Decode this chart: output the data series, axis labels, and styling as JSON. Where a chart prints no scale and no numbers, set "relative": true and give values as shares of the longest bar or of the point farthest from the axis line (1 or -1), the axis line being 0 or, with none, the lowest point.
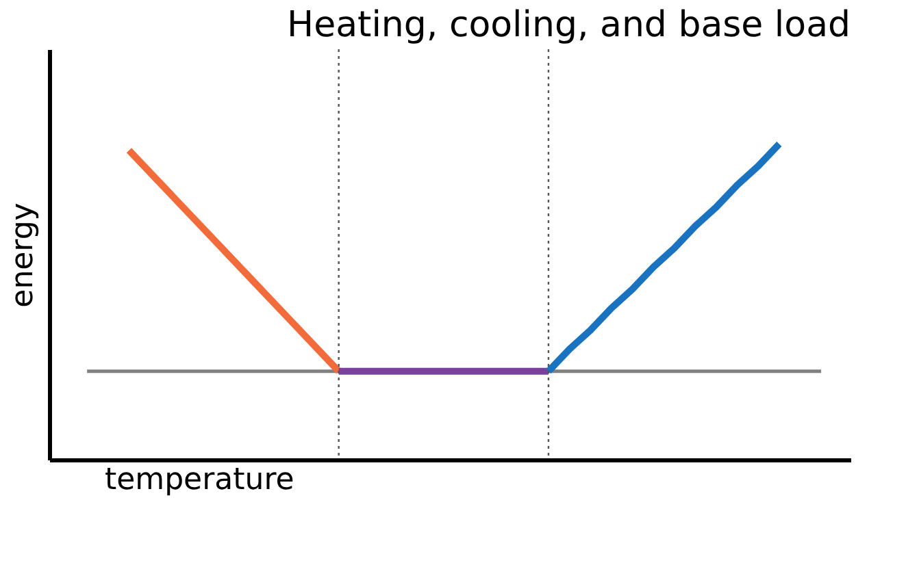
{
  "chart_data": {
    "type": "line",
    "title": "Heating, cooling, and base load",
    "xlabel": "temperature",
    "ylabel": "energy",
    "relative": true,
    "grid": false,
    "marker": "none",
    "line_style": "solid",
    "categories": [
      null,
      null,
      null,
      null,
      null,
      null,
      null,
      null,
      null,
      null,
      null,
      null,
      null,
      null,
      null,
      null,
      null,
      null,
      null,
      null,
      null,
      null,
      null,
      null,
      null,
      null,
      null,
      null,
      null,
      null,
      null,
      null,
      null,
      null,
      null,
      null
    ],
    "series": [
      {
        "color": "#808080",
        "values": [
          0.28,
          0.28,
          0.28,
          0.28,
          0.28,
          0.28,
          0.28,
          0.28,
          0.28,
          0.28,
          0.28,
          0.28,
          0.28,
          0.28,
          0.28,
          0.28,
          0.28,
          0.28,
          0.28,
          0.28,
          0.28,
          0.28,
          0.28,
          0.28,
          0.28,
          0.28,
          0.28,
          0.28,
          0.28,
          0.28,
          0.28,
          0.28,
          0.28,
          0.28,
          0.28,
          0.28
        ]
      },
      {
        "color": "#f26b3a",
        "values": [
          null,
          null,
          0.98,
          0.91,
          0.84,
          0.77,
          0.7,
          0.63,
          0.56,
          0.49,
          0.42,
          0.35,
          0.28,
          null,
          null,
          null,
          null,
          null,
          null,
          null,
          null,
          null,
          null,
          null,
          null,
          null,
          null,
          null,
          null,
          null,
          null,
          null,
          null,
          null,
          null,
          null
        ]
      },
      {
        "color": "#7b3f9e",
        "values": [
          null,
          null,
          null,
          null,
          null,
          null,
          null,
          null,
          null,
          null,
          null,
          null,
          0.28,
          0.28,
          0.28,
          0.28,
          0.28,
          0.28,
          0.28,
          0.28,
          0.28,
          0.28,
          0.28,
          null,
          null,
          null,
          null,
          null,
          null,
          null,
          null,
          null,
          null,
          null,
          null,
          null
        ]
      },
      {
        "color": "#1a73c0",
        "values": [
          null,
          null,
          null,
          null,
          null,
          null,
          null,
          null,
          null,
          null,
          null,
          null,
          null,
          null,
          null,
          null,
          null,
          null,
          null,
          null,
          null,
          null,
          0.28,
          0.35,
          0.41,
          0.48,
          0.54,
          0.61,
          0.67,
          0.74,
          0.8,
          0.87,
          0.93,
          1.0,
          null,
          null
        ]
      }
    ]
  }
}
